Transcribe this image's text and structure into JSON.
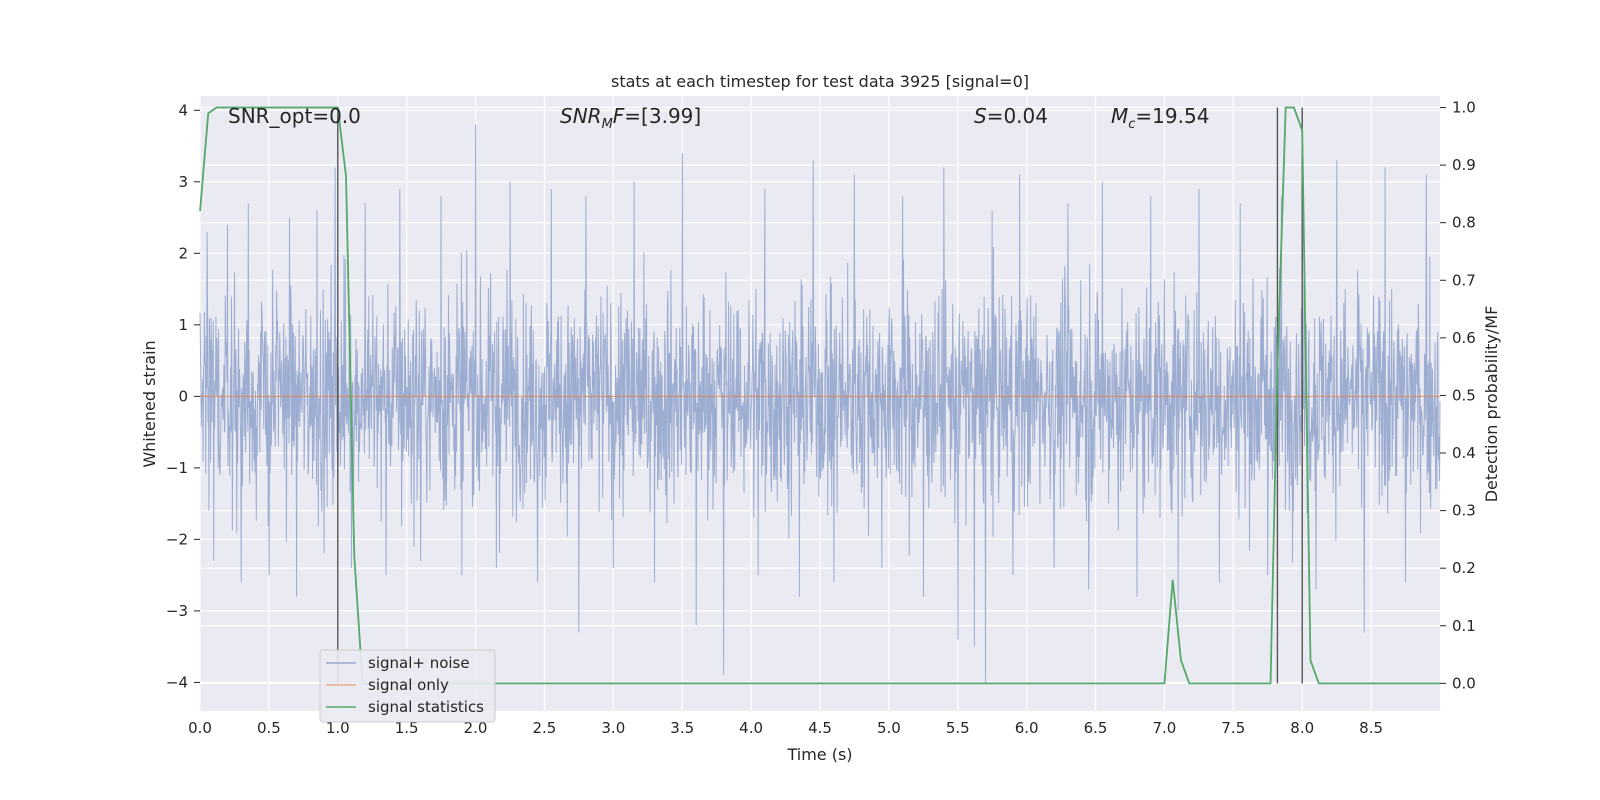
{
  "chart_data": {
    "type": "line",
    "title": "stats at each timestep for test data 3925 [signal=0]",
    "xlabel": "Time (s)",
    "ylabel": "Whitened strain",
    "ylabel_right": "Detection probability/MF",
    "xlim": [
      0.0,
      9.0
    ],
    "ylim": [
      -4.4,
      4.2
    ],
    "ylim_right": [
      -0.048,
      1.02
    ],
    "x_ticks": [
      "0.0",
      "0.5",
      "1.0",
      "1.5",
      "2.0",
      "2.5",
      "3.0",
      "3.5",
      "4.0",
      "4.5",
      "5.0",
      "5.5",
      "6.0",
      "6.5",
      "7.0",
      "7.5",
      "8.0",
      "8.5"
    ],
    "y_ticks": [
      "4",
      "3",
      "2",
      "1",
      "0",
      "−1",
      "−2",
      "−3",
      "−4"
    ],
    "y_ticks_right": [
      "1.0",
      "0.9",
      "0.8",
      "0.7",
      "0.6",
      "0.5",
      "0.4",
      "0.3",
      "0.2",
      "0.1",
      "0.0"
    ],
    "grid": true,
    "legend_position": "lower-left",
    "annotations": {
      "snr_opt": "SNR_opt=0.0",
      "snr_mf_main": "SNR",
      "snr_mf_sub": "M",
      "snr_mf_f": "F",
      "snr_mf_val": "=[3.99]",
      "s_label": "S",
      "s_val": "=0.04",
      "mc_main": "M",
      "mc_sub": "c",
      "mc_val": "=19.54"
    },
    "series": [
      {
        "name": "signal+ noise",
        "color": "#98aacf",
        "axis": "left",
        "envelope_note": "dense white-noise trace, values within about ±4",
        "upper_peaks_x": [
          0.05,
          0.2,
          0.35,
          0.5,
          0.65,
          0.85,
          0.98,
          1.2,
          1.45,
          1.75,
          2.0,
          2.25,
          2.55,
          2.8,
          3.15,
          3.5,
          3.8,
          4.1,
          4.45,
          4.75,
          5.1,
          5.4,
          5.75,
          5.95,
          6.3,
          6.55,
          6.9,
          7.25,
          7.55,
          7.85,
          8.25,
          8.6,
          8.9
        ],
        "upper_peaks_y": [
          2.3,
          2.4,
          2.7,
          3.1,
          2.5,
          2.6,
          3.2,
          2.7,
          2.9,
          2.8,
          3.8,
          3.0,
          2.9,
          2.8,
          3.0,
          3.4,
          3.0,
          2.9,
          3.3,
          3.1,
          2.8,
          3.2,
          2.6,
          3.1,
          2.7,
          3.0,
          2.8,
          2.9,
          2.7,
          2.8,
          3.3,
          3.2,
          3.1
        ],
        "lower_peaks_x": [
          0.1,
          0.3,
          0.5,
          0.7,
          0.9,
          1.1,
          1.35,
          1.6,
          1.9,
          2.15,
          2.45,
          2.75,
          3.0,
          3.3,
          3.6,
          3.8,
          4.05,
          4.35,
          4.6,
          4.95,
          5.25,
          5.5,
          5.62,
          5.7,
          5.9,
          6.2,
          6.45,
          6.8,
          7.1,
          7.4,
          7.75,
          8.1,
          8.45,
          8.75
        ],
        "lower_peaks_y": [
          -2.3,
          -2.6,
          -2.5,
          -2.8,
          -2.2,
          -2.4,
          -2.5,
          -2.3,
          -2.5,
          -2.4,
          -2.6,
          -3.3,
          -2.4,
          -2.6,
          -3.2,
          -3.9,
          -2.5,
          -2.8,
          -2.6,
          -2.4,
          -2.8,
          -3.4,
          -3.5,
          -4.0,
          -2.5,
          -2.4,
          -2.7,
          -2.8,
          -3.0,
          -2.6,
          -2.5,
          -2.7,
          -3.3,
          -2.6
        ]
      },
      {
        "name": "signal only",
        "color": "#dd8452",
        "axis": "left",
        "x": [
          0.0,
          9.0
        ],
        "y": [
          0.0,
          0.0
        ]
      },
      {
        "name": "signal statistics",
        "color": "#55a868",
        "axis": "right",
        "x": [
          0.0,
          0.06,
          0.12,
          0.18,
          0.25,
          0.35,
          0.45,
          0.55,
          0.65,
          0.75,
          0.85,
          0.95,
          1.0,
          1.06,
          1.12,
          1.18,
          1.24,
          1.3,
          2.0,
          3.0,
          4.0,
          5.0,
          6.0,
          6.95,
          7.0,
          7.06,
          7.12,
          7.18,
          7.25,
          7.4,
          7.55,
          7.7,
          7.77,
          7.82,
          7.88,
          7.94,
          8.0,
          8.06,
          8.12,
          8.2,
          8.5,
          9.0
        ],
        "y": [
          0.82,
          0.99,
          1.0,
          1.0,
          1.0,
          1.0,
          1.0,
          1.0,
          1.0,
          1.0,
          1.0,
          1.0,
          1.0,
          0.88,
          0.22,
          0.0,
          0.0,
          0.0,
          0.0,
          0.0,
          0.0,
          0.0,
          0.0,
          0.0,
          0.0,
          0.18,
          0.04,
          0.0,
          0.0,
          0.0,
          0.0,
          0.0,
          0.0,
          0.55,
          1.0,
          1.0,
          0.96,
          0.04,
          0.0,
          0.0,
          0.0,
          0.0
        ]
      }
    ],
    "vertical_markers_x": [
      1.0,
      7.82,
      8.0
    ]
  }
}
